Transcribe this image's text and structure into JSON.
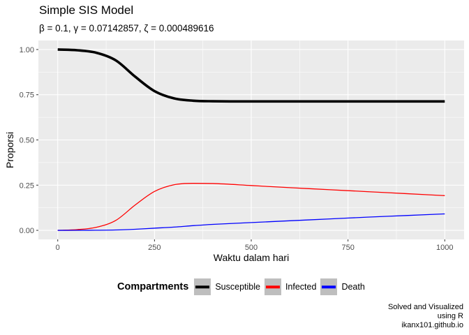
{
  "chart_data": {
    "type": "line",
    "title": "Simple SIS Model",
    "subtitle": "β = 0.1,  γ = 0.07142857,  ζ = 0.000489616",
    "xlabel": "Waktu dalam hari",
    "ylabel": "Proporsi",
    "xlim": [
      -50,
      1050
    ],
    "ylim": [
      -0.05,
      1.05
    ],
    "xticks": [
      0,
      250,
      500,
      750,
      1000
    ],
    "xtick_labels": [
      "0",
      "250",
      "500",
      "750",
      "1000"
    ],
    "yticks": [
      0,
      0.25,
      0.5,
      0.75,
      1.0
    ],
    "ytick_labels": [
      "0.00",
      "0.25",
      "0.50",
      "0.75",
      "1.00"
    ],
    "grid": true,
    "legend_position": "bottom",
    "legend_title": "Compartments",
    "x": [
      0,
      50,
      100,
      150,
      200,
      250,
      300,
      350,
      400,
      500,
      600,
      700,
      800,
      900,
      1000
    ],
    "series": [
      {
        "name": "Susceptible",
        "color": "#000000",
        "values": [
          1.0,
          0.996,
          0.982,
          0.94,
          0.85,
          0.77,
          0.73,
          0.717,
          0.714,
          0.713,
          0.713,
          0.713,
          0.713,
          0.713,
          0.713
        ]
      },
      {
        "name": "Infected",
        "color": "#ff0000",
        "values": [
          0.0,
          0.004,
          0.017,
          0.055,
          0.14,
          0.215,
          0.252,
          0.26,
          0.259,
          0.248,
          0.236,
          0.225,
          0.214,
          0.203,
          0.192
        ]
      },
      {
        "name": "Death",
        "color": "#0000ff",
        "values": [
          0.0,
          0.0001,
          0.0006,
          0.002,
          0.006,
          0.012,
          0.018,
          0.026,
          0.033,
          0.043,
          0.053,
          0.063,
          0.073,
          0.082,
          0.091
        ]
      }
    ]
  },
  "caption": {
    "line1": "Solved and Visualized",
    "line2": "using R",
    "line3": "ikanx101.github.io"
  }
}
